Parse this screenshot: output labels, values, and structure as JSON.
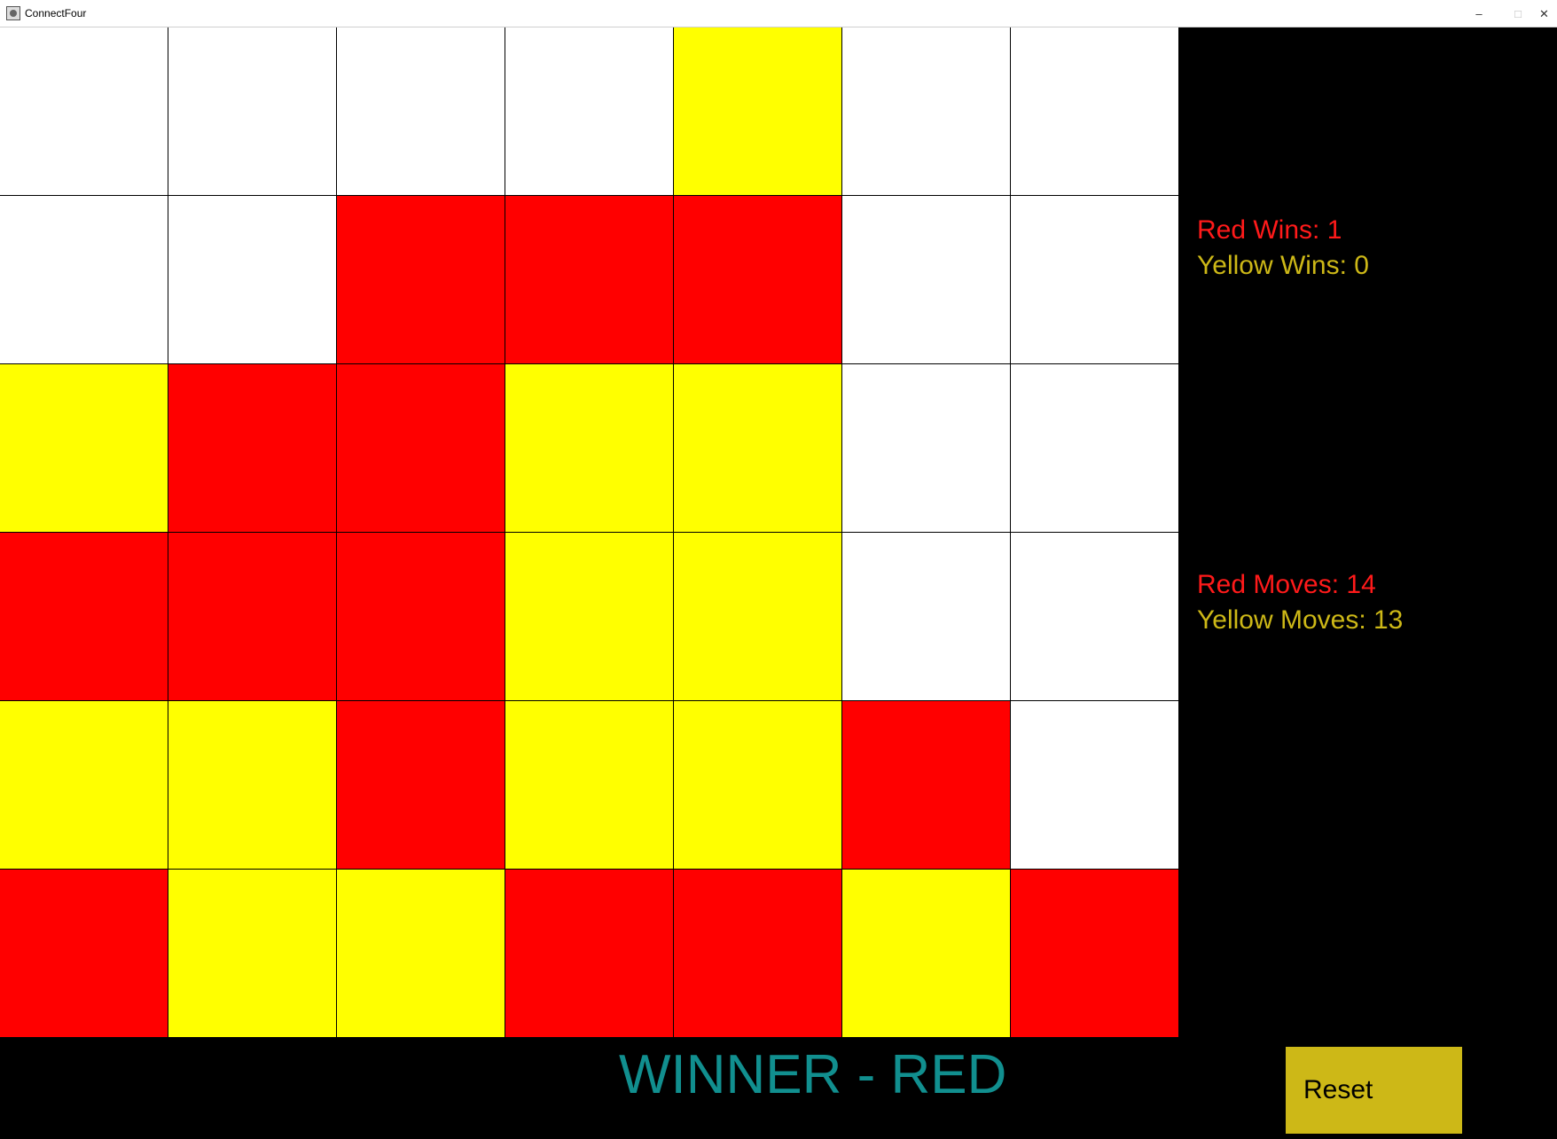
{
  "window": {
    "title": "ConnectFour",
    "minimize_glyph": "–",
    "maximize_glyph": "□",
    "close_glyph": "✕"
  },
  "colors": {
    "red": "#ff0000",
    "yellow": "#ffff00",
    "empty": "#ffffff",
    "red_text": "#ff1a1a",
    "yellow_text": "#cdb817",
    "winner_text": "#118f8f",
    "reset_button": "#cdb817"
  },
  "board": [
    [
      "empty",
      "empty",
      "empty",
      "empty",
      "yellow",
      "empty",
      "empty"
    ],
    [
      "empty",
      "empty",
      "red",
      "red",
      "red",
      "empty",
      "empty"
    ],
    [
      "yellow",
      "red",
      "red",
      "yellow",
      "yellow",
      "empty",
      "empty"
    ],
    [
      "red",
      "red",
      "red",
      "yellow",
      "yellow",
      "empty",
      "empty"
    ],
    [
      "yellow",
      "yellow",
      "red",
      "yellow",
      "yellow",
      "red",
      "empty"
    ],
    [
      "red",
      "yellow",
      "yellow",
      "red",
      "red",
      "yellow",
      "red"
    ]
  ],
  "stats": {
    "red_wins": "Red Wins: 1",
    "yellow_wins": "Yellow Wins: 0",
    "red_moves": "Red Moves: 14",
    "yellow_moves": "Yellow Moves: 13"
  },
  "status": {
    "winner": "WINNER - RED"
  },
  "controls": {
    "reset_label": "Reset"
  }
}
